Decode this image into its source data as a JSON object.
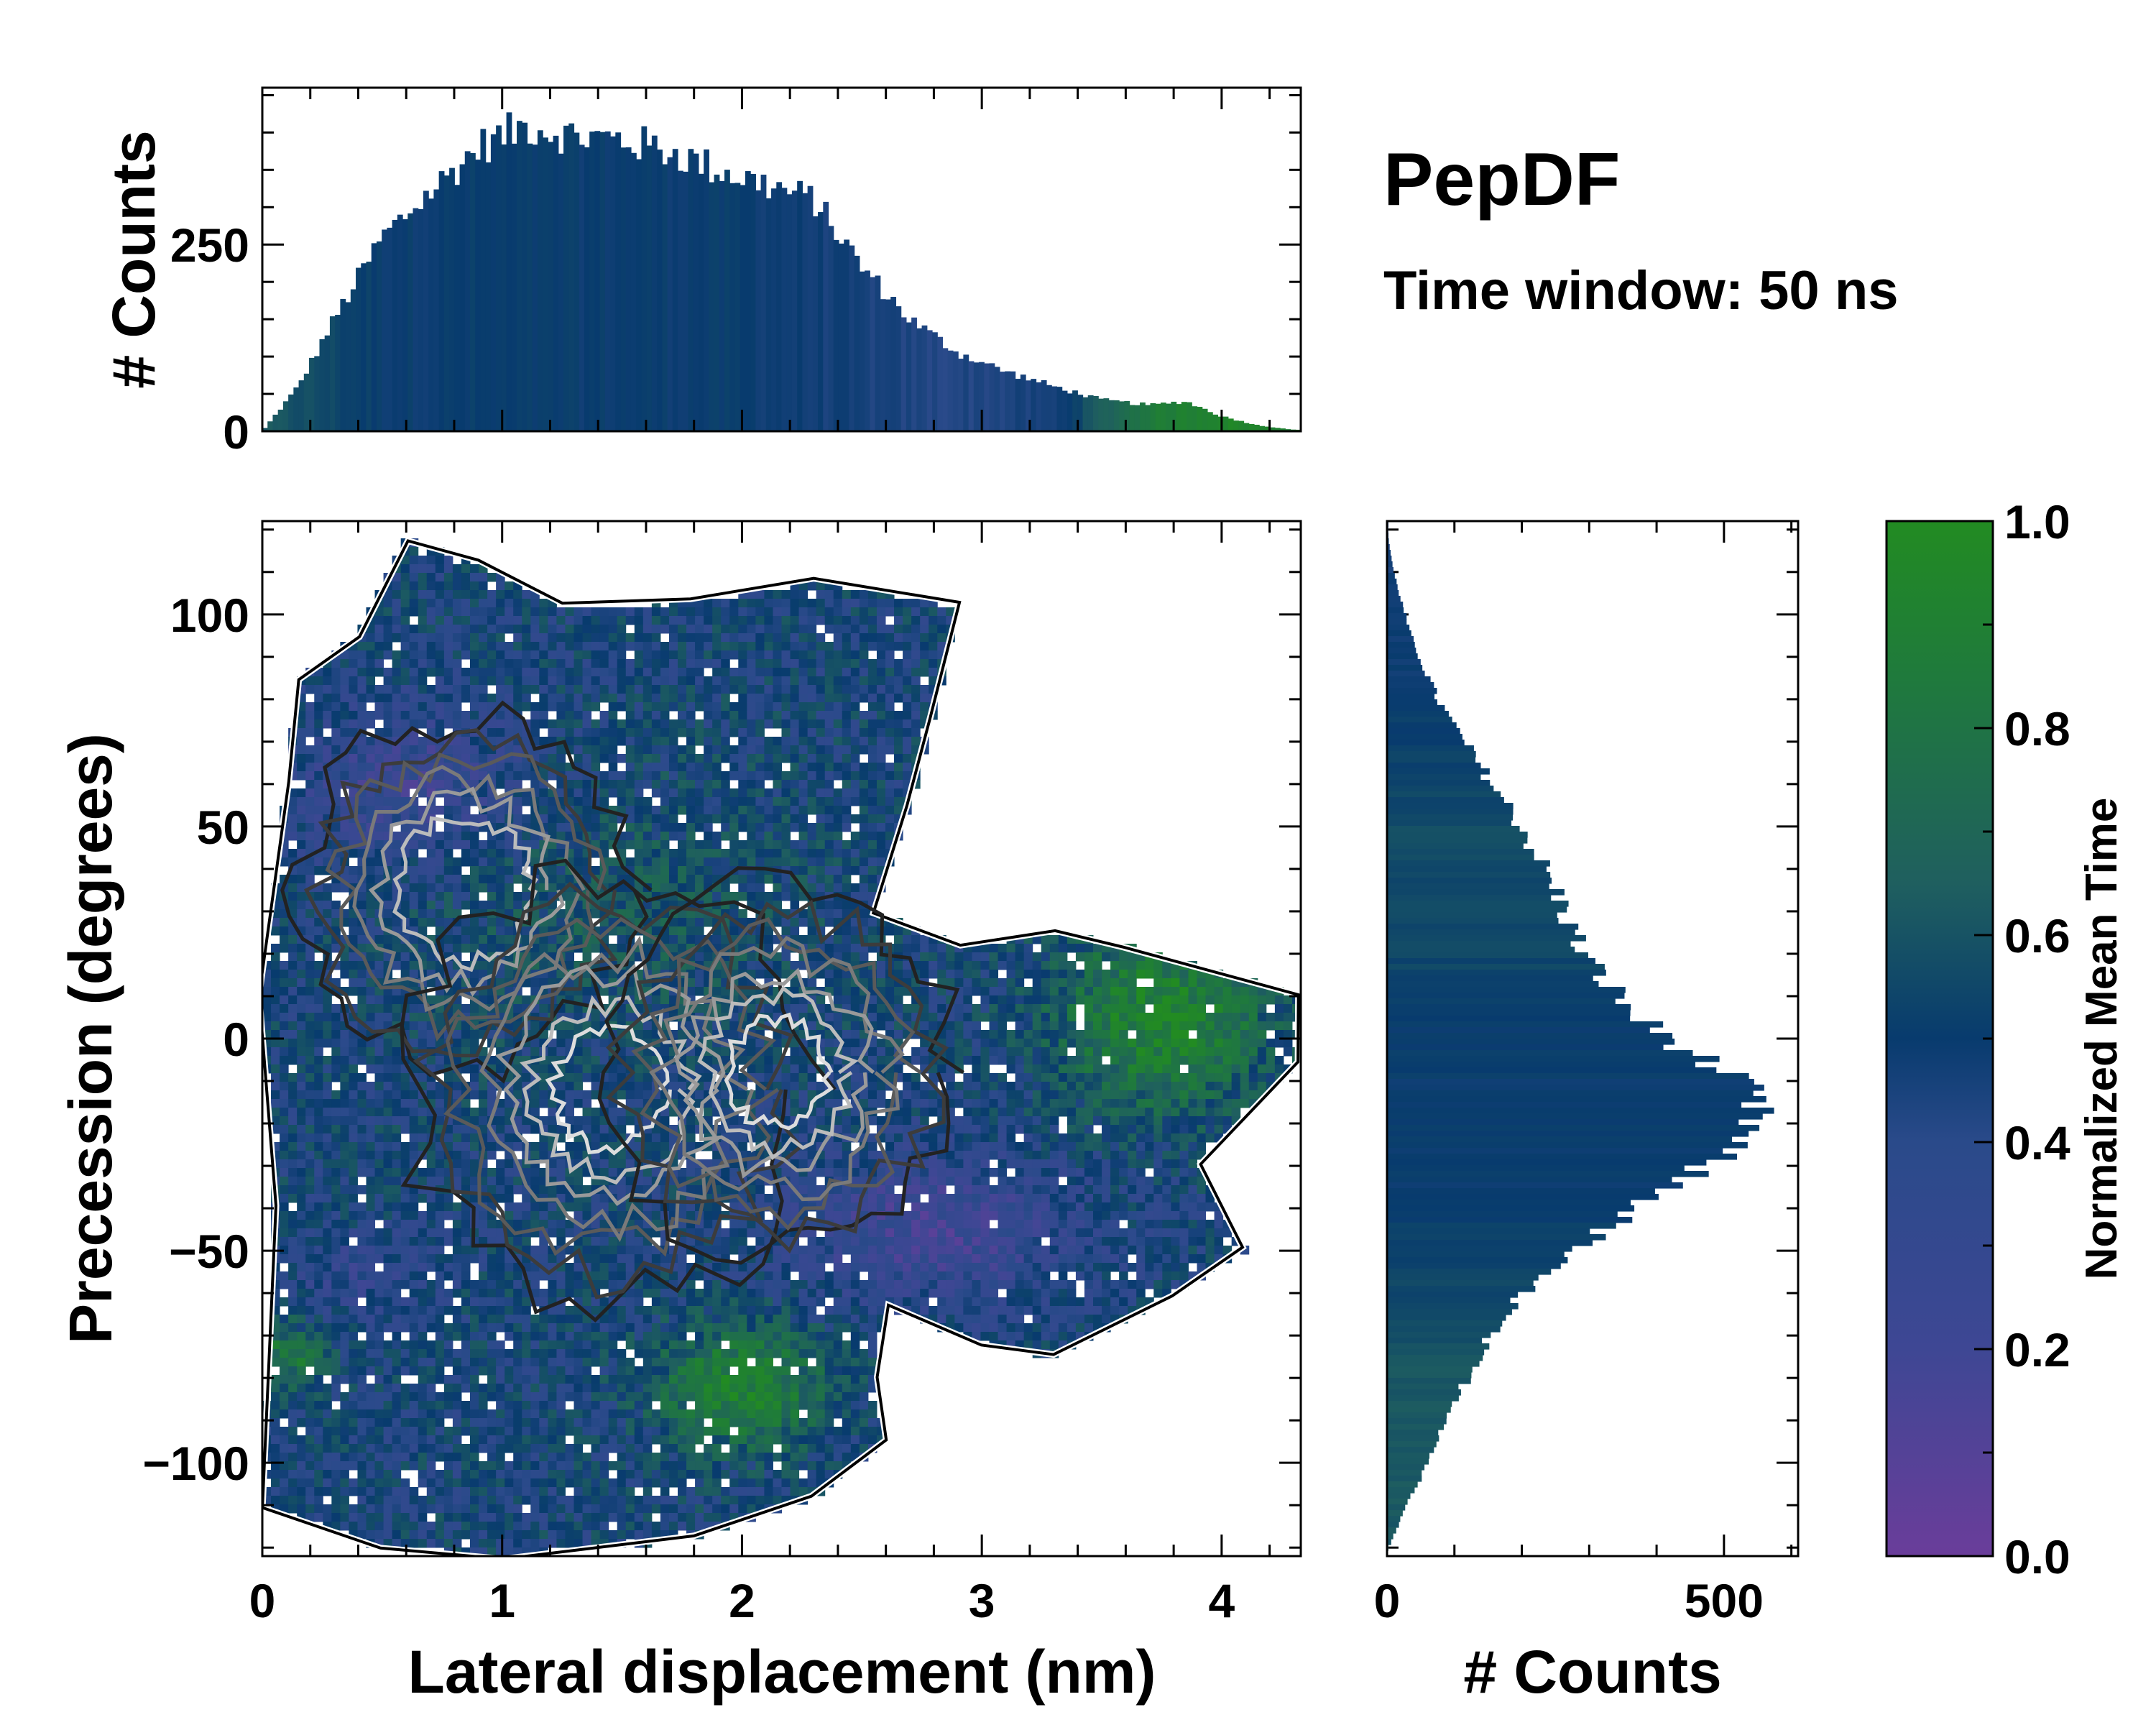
{
  "chart_data": {
    "type": "heatmap",
    "title": "PepDF",
    "subtitle": "Time window: 50 ns",
    "main": {
      "xlabel": "Lateral displacement (nm)",
      "ylabel": "Precession (degrees)",
      "xlim": [
        0,
        4.33
      ],
      "ylim": [
        -122,
        122
      ],
      "xticks": [
        0,
        1,
        2,
        3,
        4
      ],
      "yticks": [
        -100,
        -50,
        0,
        50,
        100
      ],
      "ytick_labels": [
        "−100",
        "−50",
        "0",
        "50",
        "100"
      ],
      "color_by": "Normalized Mean Time",
      "density_peaks": [
        {
          "x": 0.85,
          "y": 35,
          "weight": 0.8
        },
        {
          "x": 1.45,
          "y": -12,
          "weight": 1.0
        },
        {
          "x": 2.15,
          "y": -8,
          "weight": 0.85
        }
      ]
    },
    "top_histogram": {
      "ylabel": "# Counts",
      "yticks": [
        0,
        250
      ],
      "ylim": [
        0,
        460
      ],
      "x_range": [
        0,
        4.33
      ],
      "bins": 200,
      "profile": [
        {
          "x": 0.0,
          "count": 0
        },
        {
          "x": 0.15,
          "count": 60
        },
        {
          "x": 0.3,
          "count": 150
        },
        {
          "x": 0.5,
          "count": 260
        },
        {
          "x": 0.7,
          "count": 320
        },
        {
          "x": 0.9,
          "count": 380
        },
        {
          "x": 1.1,
          "count": 410
        },
        {
          "x": 1.3,
          "count": 395
        },
        {
          "x": 1.5,
          "count": 390
        },
        {
          "x": 1.7,
          "count": 375
        },
        {
          "x": 1.9,
          "count": 350
        },
        {
          "x": 2.1,
          "count": 330
        },
        {
          "x": 2.3,
          "count": 310
        },
        {
          "x": 2.5,
          "count": 220
        },
        {
          "x": 2.7,
          "count": 150
        },
        {
          "x": 2.9,
          "count": 105
        },
        {
          "x": 3.1,
          "count": 80
        },
        {
          "x": 3.3,
          "count": 60
        },
        {
          "x": 3.5,
          "count": 42
        },
        {
          "x": 3.7,
          "count": 35
        },
        {
          "x": 3.85,
          "count": 40
        },
        {
          "x": 4.0,
          "count": 20
        },
        {
          "x": 4.15,
          "count": 8
        },
        {
          "x": 4.3,
          "count": 2
        }
      ],
      "color_profile": [
        {
          "x": 0.0,
          "t": 0.62
        },
        {
          "x": 0.5,
          "t": 0.5
        },
        {
          "x": 2.0,
          "t": 0.5
        },
        {
          "x": 2.8,
          "t": 0.42
        },
        {
          "x": 3.3,
          "t": 0.45
        },
        {
          "x": 3.7,
          "t": 0.85
        },
        {
          "x": 4.0,
          "t": 0.95
        },
        {
          "x": 4.33,
          "t": 0.9
        }
      ]
    },
    "right_histogram": {
      "xlabel": "# Counts",
      "xticks": [
        0,
        500
      ],
      "xlim": [
        0,
        610
      ],
      "y_range": [
        -122,
        122
      ],
      "bins": 180,
      "profile": [
        {
          "y": -120,
          "count": 2
        },
        {
          "y": -110,
          "count": 30
        },
        {
          "y": -100,
          "count": 60
        },
        {
          "y": -85,
          "count": 105
        },
        {
          "y": -70,
          "count": 150
        },
        {
          "y": -55,
          "count": 230
        },
        {
          "y": -42,
          "count": 350
        },
        {
          "y": -30,
          "count": 470
        },
        {
          "y": -20,
          "count": 545
        },
        {
          "y": -12,
          "count": 530
        },
        {
          "y": -5,
          "count": 470
        },
        {
          "y": 5,
          "count": 370
        },
        {
          "y": 20,
          "count": 290
        },
        {
          "y": 35,
          "count": 250
        },
        {
          "y": 50,
          "count": 200
        },
        {
          "y": 65,
          "count": 135
        },
        {
          "y": 80,
          "count": 75
        },
        {
          "y": 95,
          "count": 35
        },
        {
          "y": 110,
          "count": 10
        },
        {
          "y": 118,
          "count": 2
        }
      ],
      "color_profile": [
        {
          "y": -122,
          "t": 0.62
        },
        {
          "y": -80,
          "t": 0.62
        },
        {
          "y": -60,
          "t": 0.55
        },
        {
          "y": -35,
          "t": 0.5
        },
        {
          "y": 0,
          "t": 0.5
        },
        {
          "y": 20,
          "t": 0.55
        },
        {
          "y": 50,
          "t": 0.57
        },
        {
          "y": 80,
          "t": 0.5
        },
        {
          "y": 122,
          "t": 0.45
        }
      ]
    },
    "colorbar": {
      "label": "Normalized Mean Time",
      "range": [
        0,
        1
      ],
      "ticks": [
        0.0,
        0.2,
        0.4,
        0.6,
        0.8,
        1.0
      ],
      "tick_labels": [
        "0.0",
        "0.2",
        "0.4",
        "0.6",
        "0.8",
        "1.0"
      ],
      "colors": [
        "#6a3d9a",
        "#3e4794",
        "#083b6e",
        "#1f5f5f",
        "#1f7a3c",
        "#228b22"
      ]
    }
  }
}
